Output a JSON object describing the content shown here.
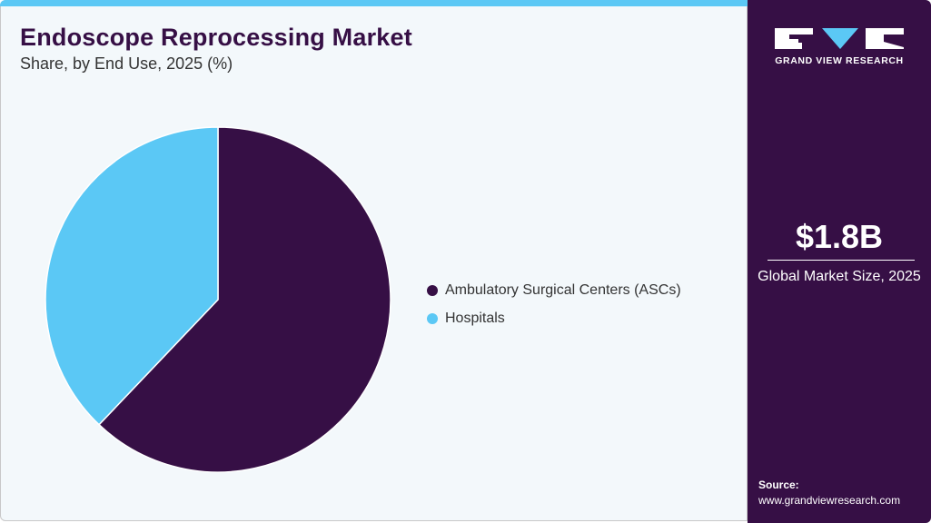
{
  "header": {
    "title": "Endoscope Reprocessing Market",
    "subtitle": "Share, by End Use, 2025 (%)"
  },
  "sidebar": {
    "logo_text": "GRAND VIEW RESEARCH",
    "market_size": "$1.8B",
    "market_size_label": "Global Market Size, 2025",
    "source_label": "Source:",
    "source_url": "www.grandviewresearch.com"
  },
  "colors": {
    "accent": "#5bc8f5",
    "brand": "#360f45"
  },
  "chart_data": {
    "type": "pie",
    "title": "Endoscope Reprocessing Market",
    "subtitle": "Share, by End Use, 2025 (%)",
    "categories": [
      "Ambulatory Surgical Centers (ASCs)",
      "Hospitals"
    ],
    "values": [
      62.1,
      37.9
    ],
    "colors": [
      "#360f45",
      "#5bc8f5"
    ],
    "start_angle": "12 o'clock, clockwise",
    "legend_position": "right"
  }
}
